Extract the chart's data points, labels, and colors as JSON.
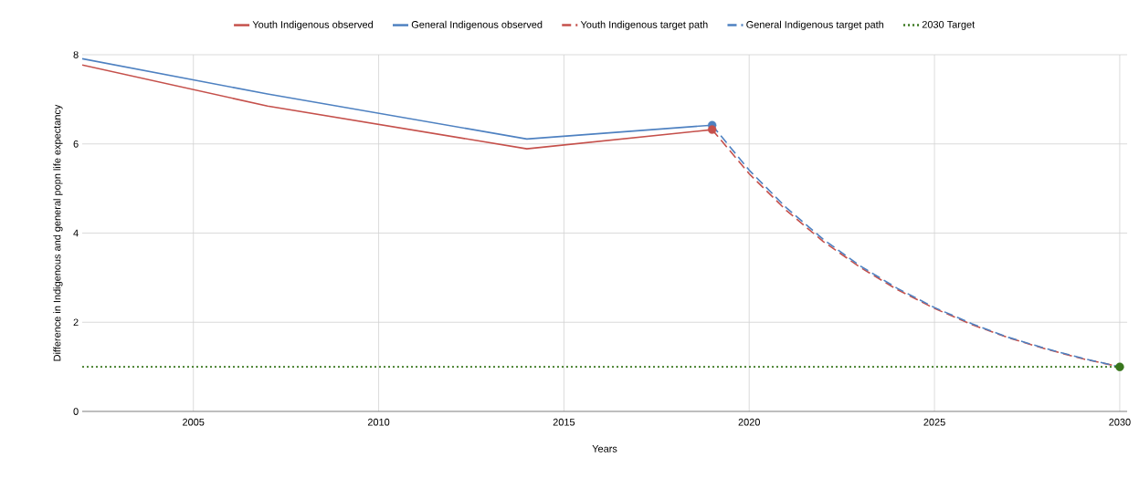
{
  "chart_data": {
    "type": "line",
    "xlabel": "Years",
    "ylabel": "Difference in Indigenous and general popn life expectancy",
    "xlim": [
      2002,
      2030.2
    ],
    "ylim": [
      0,
      8
    ],
    "xticks": [
      2005,
      2010,
      2015,
      2020,
      2025,
      2030
    ],
    "yticks": [
      0,
      2,
      4,
      6,
      8
    ],
    "grid": true,
    "legend": "top",
    "series": [
      {
        "name": "Youth Indigenous observed",
        "color": "#c5504b",
        "line_style": "solid",
        "x": [
          2002,
          2007,
          2014,
          2019
        ],
        "values": [
          7.77,
          6.85,
          5.89,
          6.32
        ]
      },
      {
        "name": "General Indigenous observed",
        "color": "#4e81c1",
        "line_style": "solid",
        "x": [
          2002,
          2007,
          2014,
          2019
        ],
        "values": [
          7.91,
          7.12,
          6.11,
          6.42
        ]
      },
      {
        "name": "Youth Indigenous target path",
        "color": "#c5504b",
        "line_style": "dashed",
        "x": [
          2019,
          2020,
          2021,
          2022,
          2023,
          2024,
          2025,
          2026,
          2027,
          2028,
          2029,
          2030
        ],
        "values": [
          6.32,
          5.33,
          4.51,
          3.81,
          3.23,
          2.73,
          2.31,
          1.95,
          1.65,
          1.4,
          1.18,
          1.0
        ]
      },
      {
        "name": "General Indigenous target path",
        "color": "#4e81c1",
        "line_style": "dashed",
        "x": [
          2019,
          2020,
          2021,
          2022,
          2023,
          2024,
          2025,
          2026,
          2027,
          2028,
          2029,
          2030
        ],
        "values": [
          6.42,
          5.41,
          4.57,
          3.86,
          3.26,
          2.76,
          2.33,
          1.97,
          1.66,
          1.41,
          1.19,
          1.0
        ]
      },
      {
        "name": "2030 Target",
        "color": "#38761d",
        "line_style": "dotted",
        "x": [
          2002,
          2030
        ],
        "values": [
          1,
          1
        ]
      },
      {
        "type": "scatter",
        "color": "#4e81c1",
        "marker": "circle",
        "x": [
          2019
        ],
        "values": [
          6.42
        ]
      },
      {
        "type": "scatter",
        "color": "#c5504b",
        "marker": "circle",
        "x": [
          2019
        ],
        "values": [
          6.32
        ]
      },
      {
        "type": "scatter",
        "color": "#38761d",
        "marker": "circle",
        "x": [
          2030
        ],
        "values": [
          1
        ]
      }
    ]
  }
}
